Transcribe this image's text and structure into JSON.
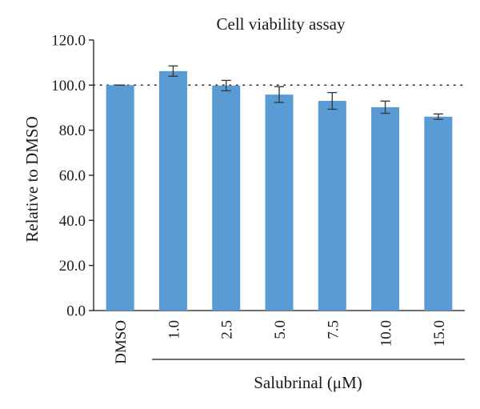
{
  "chart_data": {
    "type": "bar",
    "title": "Cell viability assay",
    "ylabel": "Relative to DMSO",
    "xlabel": "Salubrinal (μM)",
    "ylim": [
      0,
      120
    ],
    "yticks": [
      "0.0",
      "20.0",
      "40.0",
      "60.0",
      "80.0",
      "100.0",
      "120.0"
    ],
    "ytick_values": [
      0,
      20,
      40,
      60,
      80,
      100,
      120
    ],
    "categories": [
      "DMSO",
      "1.0",
      "2.5",
      "5.0",
      "7.5",
      "10.0",
      "15.0"
    ],
    "values": [
      100.0,
      106.2,
      99.8,
      95.8,
      93.0,
      90.2,
      86.0
    ],
    "errors": [
      0.0,
      2.3,
      2.3,
      3.5,
      3.7,
      2.7,
      1.2
    ],
    "reference_line": 100,
    "grid": false,
    "bar_color": "#5b9bd5"
  }
}
